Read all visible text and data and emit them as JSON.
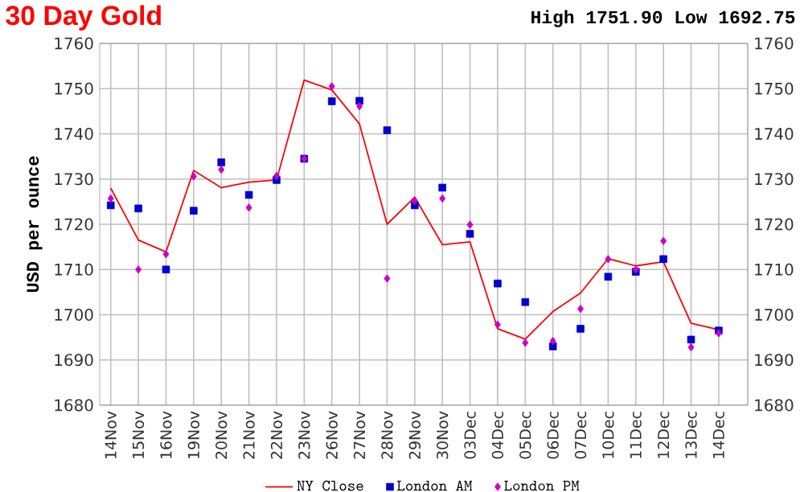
{
  "chart_data": {
    "type": "line",
    "title": "30 Day Gold",
    "subtitle": "High 1751.90 Low 1692.75",
    "ylabel": "USD per ounce",
    "categories": [
      "14Nov",
      "15Nov",
      "16Nov",
      "19Nov",
      "20Nov",
      "21Nov",
      "22Nov",
      "23Nov",
      "26Nov",
      "27Nov",
      "28Nov",
      "29Nov",
      "30Nov",
      "03Dec",
      "04Dec",
      "05Dec",
      "06Dec",
      "07Dec",
      "10Dec",
      "11Dec",
      "12Dec",
      "13Dec",
      "14Dec"
    ],
    "series": [
      {
        "name": "NY Close",
        "marker": "none",
        "color": "#ff0000",
        "values": [
          1728.0,
          1716.5,
          1713.9,
          1731.9,
          1728.1,
          1729.3,
          1729.8,
          1751.9,
          1749.7,
          1742.2,
          1720.0,
          1726.0,
          1715.5,
          1716.1,
          1696.9,
          1694.6,
          1700.7,
          1704.8,
          1712.4,
          1710.8,
          1711.7,
          1698.1,
          1696.7
        ]
      },
      {
        "name": "London AM",
        "type": "scatter",
        "marker": "square",
        "color": "#0000cc",
        "values": [
          1724.2,
          1723.5,
          1710.0,
          1723.0,
          1733.7,
          1726.5,
          1729.8,
          1734.5,
          1747.2,
          1747.3,
          1740.8,
          1724.2,
          1728.1,
          1717.9,
          1706.9,
          1702.8,
          1693.0,
          1696.9,
          1708.4,
          1709.5,
          1712.3,
          1694.5,
          1696.5
        ]
      },
      {
        "name": "London PM",
        "type": "scatter",
        "marker": "diamond",
        "color": "#cc00cc",
        "values": [
          1725.7,
          1710.0,
          1713.4,
          1730.6,
          1732.1,
          1723.7,
          1730.7,
          1734.5,
          1750.5,
          1746.1,
          1708.0,
          1725.2,
          1725.7,
          1719.9,
          1697.8,
          1693.8,
          1694.2,
          1701.3,
          1712.3,
          1710.0,
          1716.3,
          1692.8,
          1695.9
        ]
      }
    ],
    "ylim": [
      1680,
      1760
    ],
    "yticks": [
      1680,
      1690,
      1700,
      1710,
      1720,
      1730,
      1740,
      1750,
      1760
    ],
    "y2lim": [
      1680,
      1760
    ],
    "y2ticks": [
      1680,
      1690,
      1700,
      1710,
      1720,
      1730,
      1740,
      1750,
      1760
    ],
    "grid": true,
    "legend": "bottom"
  }
}
